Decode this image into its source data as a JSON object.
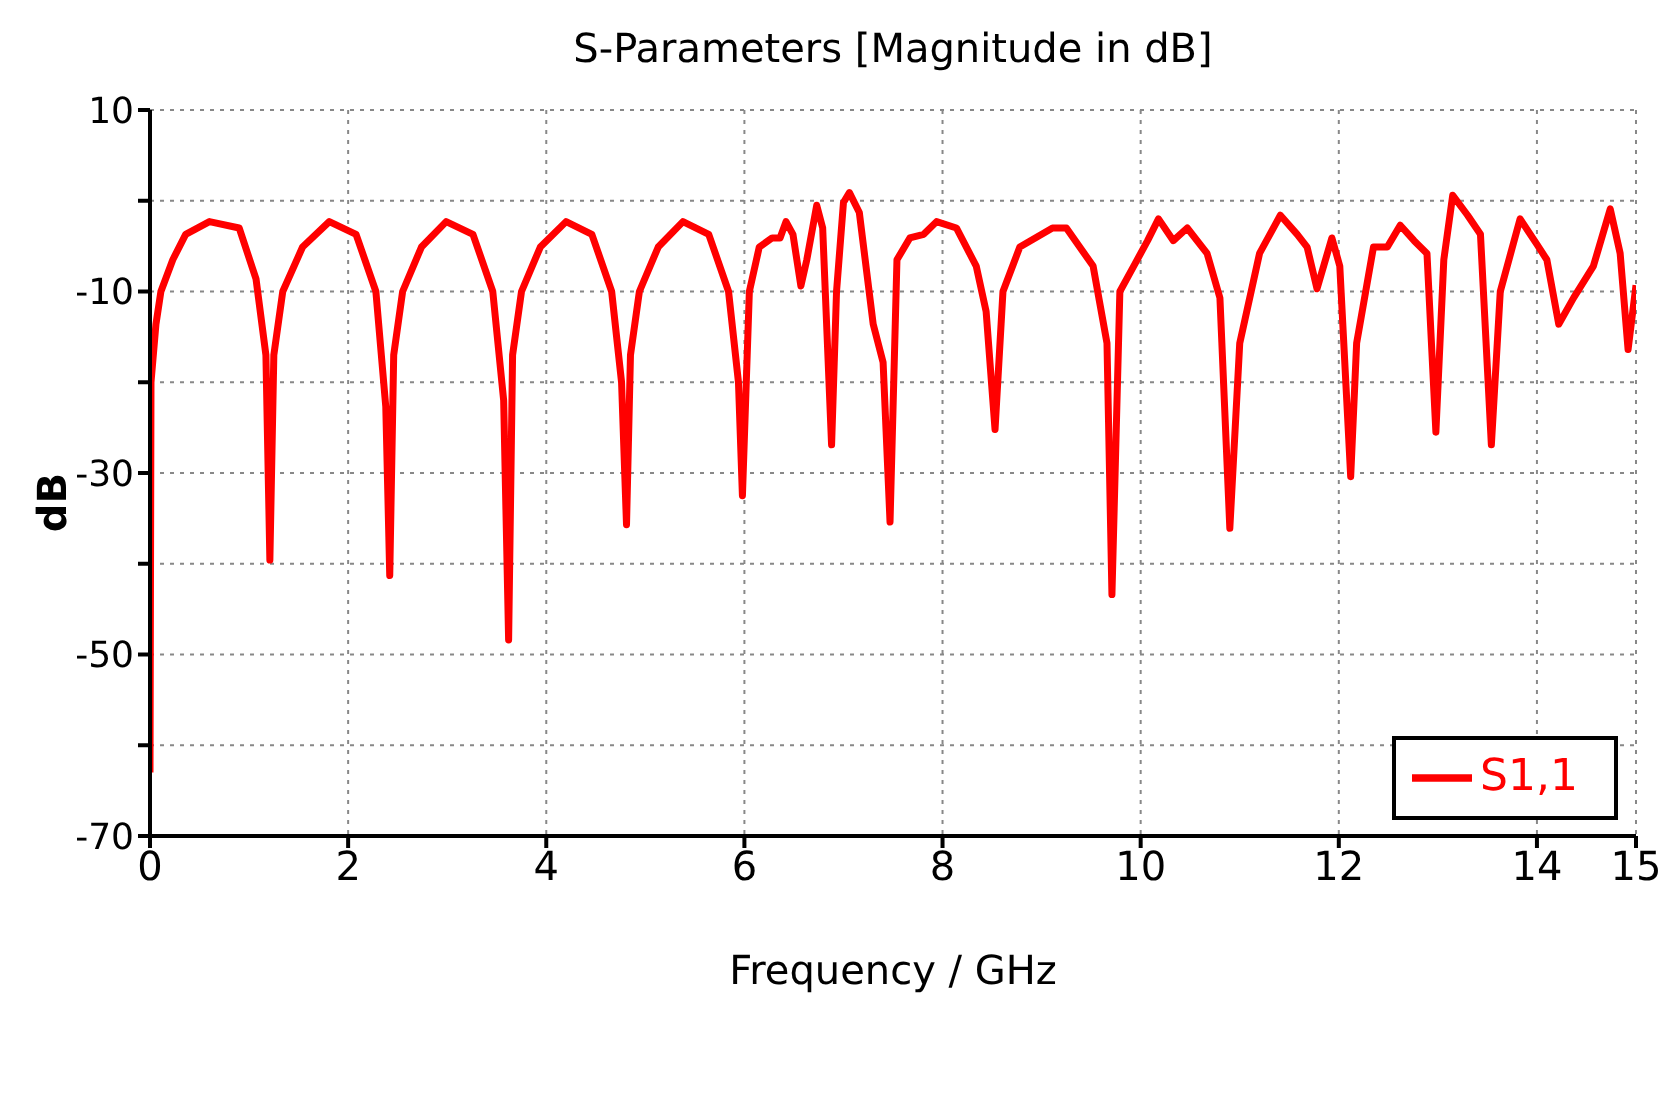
{
  "chart_data": {
    "type": "line",
    "title": "S-Parameters [Magnitude in dB]",
    "xlabel": "Frequency / GHz",
    "ylabel": "dB",
    "xlim": [
      0,
      15
    ],
    "xticks": [
      0,
      2,
      4,
      6,
      8,
      10,
      12,
      14,
      15
    ],
    "ylim": [
      -70,
      10
    ],
    "yticks": [
      {
        "value": -70,
        "label": "-70"
      },
      {
        "value": -60,
        "label": null
      },
      {
        "value": -50,
        "label": "-50"
      },
      {
        "value": -40,
        "label": null
      },
      {
        "value": -30,
        "label": "-30"
      },
      {
        "value": -20,
        "label": null
      },
      {
        "value": -10,
        "label": "-10"
      },
      {
        "value": 0,
        "label": null
      },
      {
        "value": 10,
        "label": "10"
      }
    ],
    "grid": true,
    "legend": "bottom right",
    "line_style": "solid",
    "marker": "none",
    "series": [
      {
        "name": "S1,1",
        "color": "#ff0000",
        "x": [
          0,
          0.01,
          0.06,
          0.11,
          0.23,
          0.36,
          0.6,
          0.9,
          1.07,
          1.17,
          1.21,
          1.25,
          1.34,
          1.54,
          1.81,
          2.08,
          2.28,
          2.38,
          2.42,
          2.46,
          2.55,
          2.74,
          2.99,
          3.26,
          3.46,
          3.57,
          3.62,
          3.66,
          3.75,
          3.94,
          4.2,
          4.46,
          4.66,
          4.76,
          4.81,
          4.85,
          4.94,
          5.13,
          5.38,
          5.64,
          5.84,
          5.94,
          5.98,
          6.05,
          6.15,
          6.28,
          6.36,
          6.42,
          6.49,
          6.57,
          6.63,
          6.73,
          6.79,
          6.88,
          6.93,
          7.0,
          7.06,
          7.16,
          7.3,
          7.4,
          7.47,
          7.54,
          7.67,
          7.81,
          7.94,
          8.14,
          8.34,
          8.44,
          8.53,
          8.61,
          8.78,
          9.11,
          9.25,
          9.52,
          9.66,
          9.71,
          9.79,
          9.93,
          10.07,
          10.18,
          10.33,
          10.47,
          10.67,
          10.8,
          10.9,
          11.0,
          11.2,
          11.41,
          11.58,
          11.68,
          11.78,
          11.93,
          12.01,
          12.12,
          12.18,
          12.35,
          12.49,
          12.62,
          12.76,
          12.89,
          12.98,
          13.06,
          13.15,
          13.3,
          13.43,
          13.54,
          13.63,
          13.83,
          14.0,
          14.1,
          14.22,
          14.37,
          14.57,
          14.74,
          14.84,
          14.92,
          15.0
        ],
        "values": [
          -63,
          -20,
          -13.6,
          -10,
          -6.5,
          -3.7,
          -2.3,
          -3,
          -8.6,
          -17,
          -39.6,
          -17,
          -10,
          -5.1,
          -2.3,
          -3.7,
          -10,
          -22.7,
          -41.3,
          -17,
          -10,
          -5.1,
          -2.3,
          -3.7,
          -10,
          -22,
          -48.4,
          -17,
          -10,
          -5.1,
          -2.3,
          -3.7,
          -10,
          -20,
          -35.7,
          -17,
          -10,
          -5.1,
          -2.3,
          -3.7,
          -10,
          -20,
          -32.5,
          -10,
          -5.1,
          -4.1,
          -4.1,
          -2.3,
          -3.7,
          -9.4,
          -6.5,
          -0.5,
          -3,
          -26.9,
          -10,
          -0.2,
          0.9,
          -1.3,
          -13.6,
          -17.8,
          -35.4,
          -6.5,
          -4.1,
          -3.7,
          -2.3,
          -3,
          -7.2,
          -12.2,
          -25.2,
          -10,
          -5.1,
          -3,
          -3,
          -7.2,
          -15.7,
          -43.4,
          -10,
          -7.2,
          -4.4,
          -2,
          -4.4,
          -3,
          -5.8,
          -10.7,
          -36.1,
          -15.7,
          -5.8,
          -1.6,
          -3.7,
          -5.1,
          -9.7,
          -4.1,
          -7.2,
          -30.4,
          -15.7,
          -5.1,
          -5.1,
          -2.7,
          -4.4,
          -5.8,
          -25.5,
          -6.5,
          0.6,
          -1.6,
          -3.7,
          -26.9,
          -10,
          -2,
          -4.8,
          -6.5,
          -13.6,
          -10.7,
          -7.2,
          -0.9,
          -5.8,
          -16.4,
          -9.3
        ]
      }
    ]
  }
}
